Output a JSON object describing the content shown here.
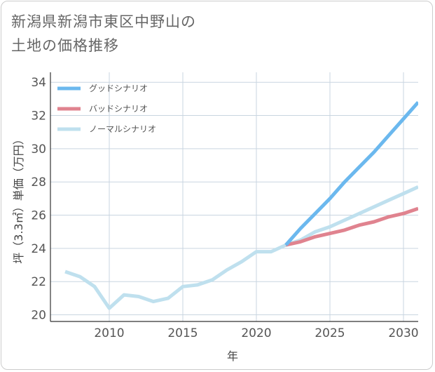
{
  "title_line1": "新潟県新潟市東区中野山の",
  "title_line2": "土地の価格推移",
  "colors": {
    "good": "#6bb8ee",
    "bad": "#e0838f",
    "normal": "#bfe0ee",
    "grid": "#c9d5e0",
    "frame": "#333333"
  },
  "chart_data": {
    "type": "line",
    "xlabel": "年",
    "ylabel": "坪（3.3㎡）単価（万円）",
    "xlim": [
      2006.0,
      2031.0
    ],
    "ylim": [
      19.6,
      34.6
    ],
    "x_ticks": [
      2010,
      2015,
      2020,
      2025,
      2030
    ],
    "y_ticks": [
      20,
      22,
      24,
      26,
      28,
      30,
      32,
      34
    ],
    "grid": true,
    "legend_position": "top-left",
    "series": [
      {
        "name": "グッドシナリオ",
        "key": "good",
        "x": [
          2022,
          2023,
          2024,
          2025,
          2026,
          2027,
          2028,
          2029,
          2030,
          2031
        ],
        "y": [
          24.2,
          25.2,
          26.1,
          27.0,
          28.0,
          28.9,
          29.8,
          30.8,
          31.8,
          32.8
        ]
      },
      {
        "name": "バッドシナリオ",
        "key": "bad",
        "x": [
          2022,
          2023,
          2024,
          2025,
          2026,
          2027,
          2028,
          2029,
          2030,
          2031
        ],
        "y": [
          24.2,
          24.4,
          24.7,
          24.9,
          25.1,
          25.4,
          25.6,
          25.9,
          26.1,
          26.4
        ]
      },
      {
        "name": "ノーマルシナリオ",
        "key": "normal",
        "x": [
          2007,
          2008,
          2009,
          2010,
          2011,
          2012,
          2013,
          2014,
          2015,
          2016,
          2017,
          2018,
          2019,
          2020,
          2021,
          2022,
          2023,
          2024,
          2025,
          2026,
          2027,
          2028,
          2029,
          2030,
          2031
        ],
        "y": [
          22.6,
          22.3,
          21.7,
          20.4,
          21.2,
          21.1,
          20.8,
          21.0,
          21.7,
          21.8,
          22.1,
          22.7,
          23.2,
          23.8,
          23.8,
          24.2,
          24.5,
          25.0,
          25.3,
          25.7,
          26.1,
          26.5,
          26.9,
          27.3,
          27.7
        ]
      }
    ]
  }
}
